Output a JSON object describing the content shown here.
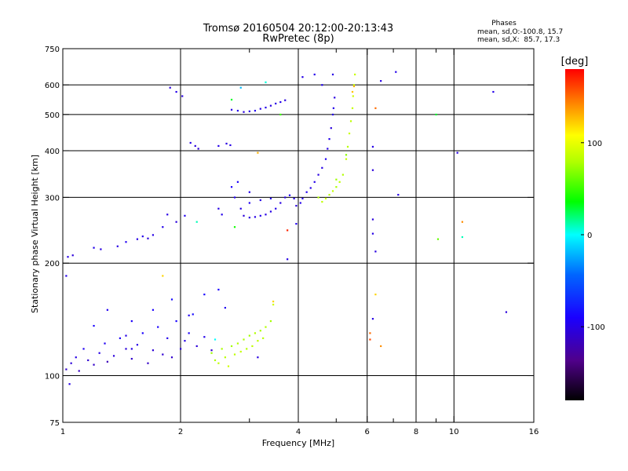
{
  "chart_data": {
    "type": "scatter",
    "title": "Tromsø 20160504 20:12:00-20:13:43",
    "subtitle": "RwPretec (8p)",
    "xlabel": "Frequency [MHz]",
    "ylabel": "Stationary phase Virtual Height [km]",
    "x_scale": "log",
    "y_scale": "log",
    "xlim": [
      1,
      16
    ],
    "ylim": [
      75,
      750
    ],
    "x_ticks": [
      1,
      2,
      4,
      6,
      8,
      10,
      16
    ],
    "x_tick_labels": [
      "1",
      "2",
      "4",
      "6",
      "8",
      "10",
      "16"
    ],
    "x_minor_ticks": [
      3,
      5,
      7,
      9
    ],
    "y_ticks": [
      75,
      100,
      200,
      300,
      400,
      500,
      600,
      750
    ],
    "y_tick_labels": [
      "75",
      "100",
      "200",
      "300",
      "400",
      "500",
      "600",
      "750"
    ],
    "grid": true,
    "legend": {
      "title": "Phases",
      "lines": [
        "mean, sd,O:-100.8, 15.7",
        "mean, sd,X:  85.7, 17.3"
      ]
    },
    "colorbar": {
      "label": "[deg]",
      "range": [
        -180,
        180
      ],
      "ticks": [
        100,
        0,
        -100
      ],
      "tick_labels": [
        "100",
        "0",
        "-100"
      ],
      "colormap": "rainbow (black-purple-blue-cyan-green-yellow-red)"
    },
    "series": [
      {
        "points": [
          [
            1.02,
            104,
            -110
          ],
          [
            1.05,
            108,
            -105
          ],
          [
            1.08,
            112,
            -100
          ],
          [
            1.1,
            103,
            -115
          ],
          [
            1.13,
            118,
            -95
          ],
          [
            1.16,
            110,
            -108
          ],
          [
            1.2,
            107,
            -112
          ],
          [
            1.24,
            115,
            -100
          ],
          [
            1.28,
            122,
            -95
          ],
          [
            1.3,
            109,
            -118
          ],
          [
            1.35,
            113,
            -104
          ],
          [
            1.4,
            126,
            -92
          ],
          [
            1.45,
            118,
            -105
          ],
          [
            1.5,
            111,
            -110
          ],
          [
            1.55,
            121,
            -100
          ],
          [
            1.6,
            130,
            -90
          ],
          [
            1.65,
            108,
            -112
          ],
          [
            1.7,
            117,
            -106
          ],
          [
            1.75,
            135,
            -90
          ],
          [
            1.8,
            114,
            -108
          ],
          [
            1.85,
            126,
            -98
          ],
          [
            1.9,
            112,
            -110
          ],
          [
            1.95,
            140,
            -88
          ],
          [
            2.0,
            118,
            -104
          ],
          [
            2.05,
            124,
            -100
          ],
          [
            2.1,
            130,
            -92
          ],
          [
            2.15,
            146,
            -85
          ],
          [
            2.2,
            120,
            -105
          ],
          [
            2.3,
            127,
            -98
          ],
          [
            2.4,
            117,
            -110
          ],
          [
            1.2,
            136,
            -88
          ],
          [
            1.5,
            140,
            -92
          ],
          [
            1.7,
            150,
            -90
          ],
          [
            1.9,
            160,
            -85
          ],
          [
            2.1,
            145,
            -95
          ],
          [
            2.3,
            165,
            -88
          ],
          [
            2.5,
            170,
            -90
          ],
          [
            2.6,
            152,
            -95
          ],
          [
            1.3,
            150,
            -95
          ],
          [
            1.45,
            128,
            -100
          ],
          [
            1.03,
            208,
            -100
          ],
          [
            1.06,
            210,
            -105
          ],
          [
            1.2,
            220,
            -98
          ],
          [
            1.25,
            218,
            -102
          ],
          [
            1.38,
            222,
            -100
          ],
          [
            1.45,
            228,
            -95
          ],
          [
            1.55,
            232,
            -100
          ],
          [
            1.6,
            236,
            -98
          ],
          [
            1.65,
            233,
            -104
          ],
          [
            1.7,
            238,
            -100
          ],
          [
            1.8,
            250,
            -98
          ],
          [
            1.85,
            270,
            -100
          ],
          [
            1.95,
            258,
            -104
          ],
          [
            2.05,
            268,
            -96
          ],
          [
            1.88,
            590,
            -104
          ],
          [
            1.95,
            575,
            -98
          ],
          [
            2.02,
            560,
            -102
          ],
          [
            2.12,
            420,
            -100
          ],
          [
            2.18,
            412,
            -104
          ],
          [
            2.22,
            405,
            -108
          ],
          [
            2.5,
            412,
            -98
          ],
          [
            2.62,
            418,
            -102
          ],
          [
            2.68,
            414,
            -100
          ],
          [
            2.7,
            515,
            -100
          ],
          [
            2.8,
            512,
            -98
          ],
          [
            2.9,
            508,
            -102
          ],
          [
            3.0,
            510,
            -100
          ],
          [
            3.1,
            512,
            -96
          ],
          [
            3.2,
            518,
            -100
          ],
          [
            3.3,
            522,
            -98
          ],
          [
            3.4,
            528,
            -102
          ],
          [
            3.5,
            535,
            -100
          ],
          [
            3.6,
            540,
            -98
          ],
          [
            3.7,
            546,
            -102
          ],
          [
            2.5,
            280,
            -100
          ],
          [
            2.55,
            270,
            -98
          ],
          [
            2.7,
            320,
            -90
          ],
          [
            2.75,
            300,
            -95
          ],
          [
            2.85,
            280,
            -100
          ],
          [
            2.9,
            268,
            -105
          ],
          [
            3.0,
            265,
            -102
          ],
          [
            3.1,
            266,
            -100
          ],
          [
            3.2,
            268,
            -98
          ],
          [
            3.3,
            270,
            -100
          ],
          [
            3.4,
            275,
            -100
          ],
          [
            3.5,
            280,
            -98
          ],
          [
            3.6,
            290,
            -102
          ],
          [
            3.7,
            300,
            -100
          ],
          [
            3.8,
            304,
            -95
          ],
          [
            3.9,
            298,
            -100
          ],
          [
            3.95,
            285,
            -104
          ],
          [
            4.05,
            290,
            -98
          ],
          [
            4.1,
            298,
            -100
          ],
          [
            4.2,
            310,
            -96
          ],
          [
            4.3,
            318,
            -100
          ],
          [
            4.4,
            330,
            -98
          ],
          [
            4.5,
            345,
            -102
          ],
          [
            4.6,
            360,
            -100
          ],
          [
            4.7,
            380,
            -95
          ],
          [
            4.75,
            405,
            -100
          ],
          [
            4.8,
            430,
            -98
          ],
          [
            4.85,
            460,
            -104
          ],
          [
            4.9,
            500,
            -100
          ],
          [
            4.92,
            520,
            -98
          ],
          [
            4.95,
            555,
            -102
          ],
          [
            3.0,
            290,
            -95
          ],
          [
            3.2,
            295,
            -100
          ],
          [
            3.4,
            298,
            -98
          ],
          [
            2.8,
            330,
            -92
          ],
          [
            3.0,
            310,
            -98
          ],
          [
            4.1,
            630,
            -100
          ],
          [
            4.4,
            640,
            -98
          ],
          [
            4.6,
            600,
            -95
          ],
          [
            4.9,
            640,
            -100
          ],
          [
            6.2,
            410,
            -100
          ],
          [
            6.2,
            355,
            -104
          ],
          [
            6.5,
            615,
            -100
          ],
          [
            7.1,
            650,
            -98
          ],
          [
            7.2,
            305,
            -100
          ],
          [
            6.2,
            262,
            -104
          ],
          [
            6.2,
            240,
            -100
          ],
          [
            6.3,
            215,
            -102
          ],
          [
            10.2,
            395,
            -100
          ],
          [
            12.6,
            575,
            -98
          ],
          [
            13.6,
            148,
            -104
          ],
          [
            6.2,
            142,
            -100
          ],
          [
            3.95,
            255,
            -96
          ],
          [
            3.75,
            205,
            -100
          ],
          [
            3.15,
            112,
            -102
          ],
          [
            1.04,
            95,
            -100
          ],
          [
            1.5,
            118,
            -100
          ],
          [
            1.02,
            185,
            -98
          ]
        ]
      },
      {
        "points": [
          [
            2.4,
            115,
            75
          ],
          [
            2.45,
            110,
            80
          ],
          [
            2.5,
            108,
            85
          ],
          [
            2.55,
            118,
            78
          ],
          [
            2.6,
            112,
            82
          ],
          [
            2.65,
            106,
            90
          ],
          [
            2.7,
            120,
            76
          ],
          [
            2.75,
            114,
            84
          ],
          [
            2.8,
            122,
            80
          ],
          [
            2.85,
            116,
            86
          ],
          [
            2.9,
            125,
            78
          ],
          [
            2.95,
            118,
            82
          ],
          [
            3.0,
            128,
            75
          ],
          [
            3.05,
            120,
            85
          ],
          [
            3.1,
            130,
            80
          ],
          [
            3.15,
            124,
            84
          ],
          [
            3.2,
            132,
            78
          ],
          [
            3.25,
            126,
            82
          ],
          [
            3.3,
            135,
            80
          ],
          [
            3.4,
            140,
            76
          ],
          [
            3.45,
            155,
            90
          ],
          [
            4.5,
            300,
            80
          ],
          [
            4.6,
            292,
            85
          ],
          [
            4.7,
            298,
            90
          ],
          [
            4.8,
            305,
            82
          ],
          [
            4.9,
            312,
            86
          ],
          [
            5.0,
            320,
            78
          ],
          [
            5.1,
            330,
            84
          ],
          [
            5.2,
            345,
            80
          ],
          [
            5.3,
            380,
            86
          ],
          [
            5.35,
            410,
            82
          ],
          [
            5.4,
            445,
            88
          ],
          [
            5.45,
            480,
            84
          ],
          [
            5.5,
            520,
            86
          ],
          [
            5.52,
            560,
            90
          ],
          [
            5.55,
            600,
            84
          ],
          [
            5.58,
            640,
            88
          ],
          [
            5.3,
            390,
            70
          ],
          [
            5.0,
            335,
            75
          ],
          [
            5.55,
            595,
            130
          ],
          [
            5.5,
            575,
            125
          ],
          [
            6.3,
            520,
            150
          ],
          [
            9.0,
            500,
            30
          ],
          [
            9.1,
            232,
            60
          ],
          [
            10.5,
            258,
            140
          ],
          [
            10.5,
            235,
            10
          ],
          [
            6.1,
            130,
            150
          ],
          [
            6.5,
            120,
            140
          ],
          [
            6.1,
            125,
            160
          ],
          [
            3.75,
            245,
            170
          ],
          [
            3.15,
            395,
            130
          ],
          [
            1.8,
            185,
            120
          ],
          [
            3.45,
            158,
            120
          ],
          [
            6.3,
            165,
            120
          ],
          [
            2.75,
            250,
            40
          ],
          [
            2.2,
            258,
            10
          ],
          [
            2.45,
            125,
            0
          ],
          [
            3.3,
            610,
            5
          ],
          [
            2.85,
            590,
            -20
          ],
          [
            3.6,
            500,
            50
          ],
          [
            2.7,
            548,
            30
          ]
        ]
      }
    ]
  }
}
